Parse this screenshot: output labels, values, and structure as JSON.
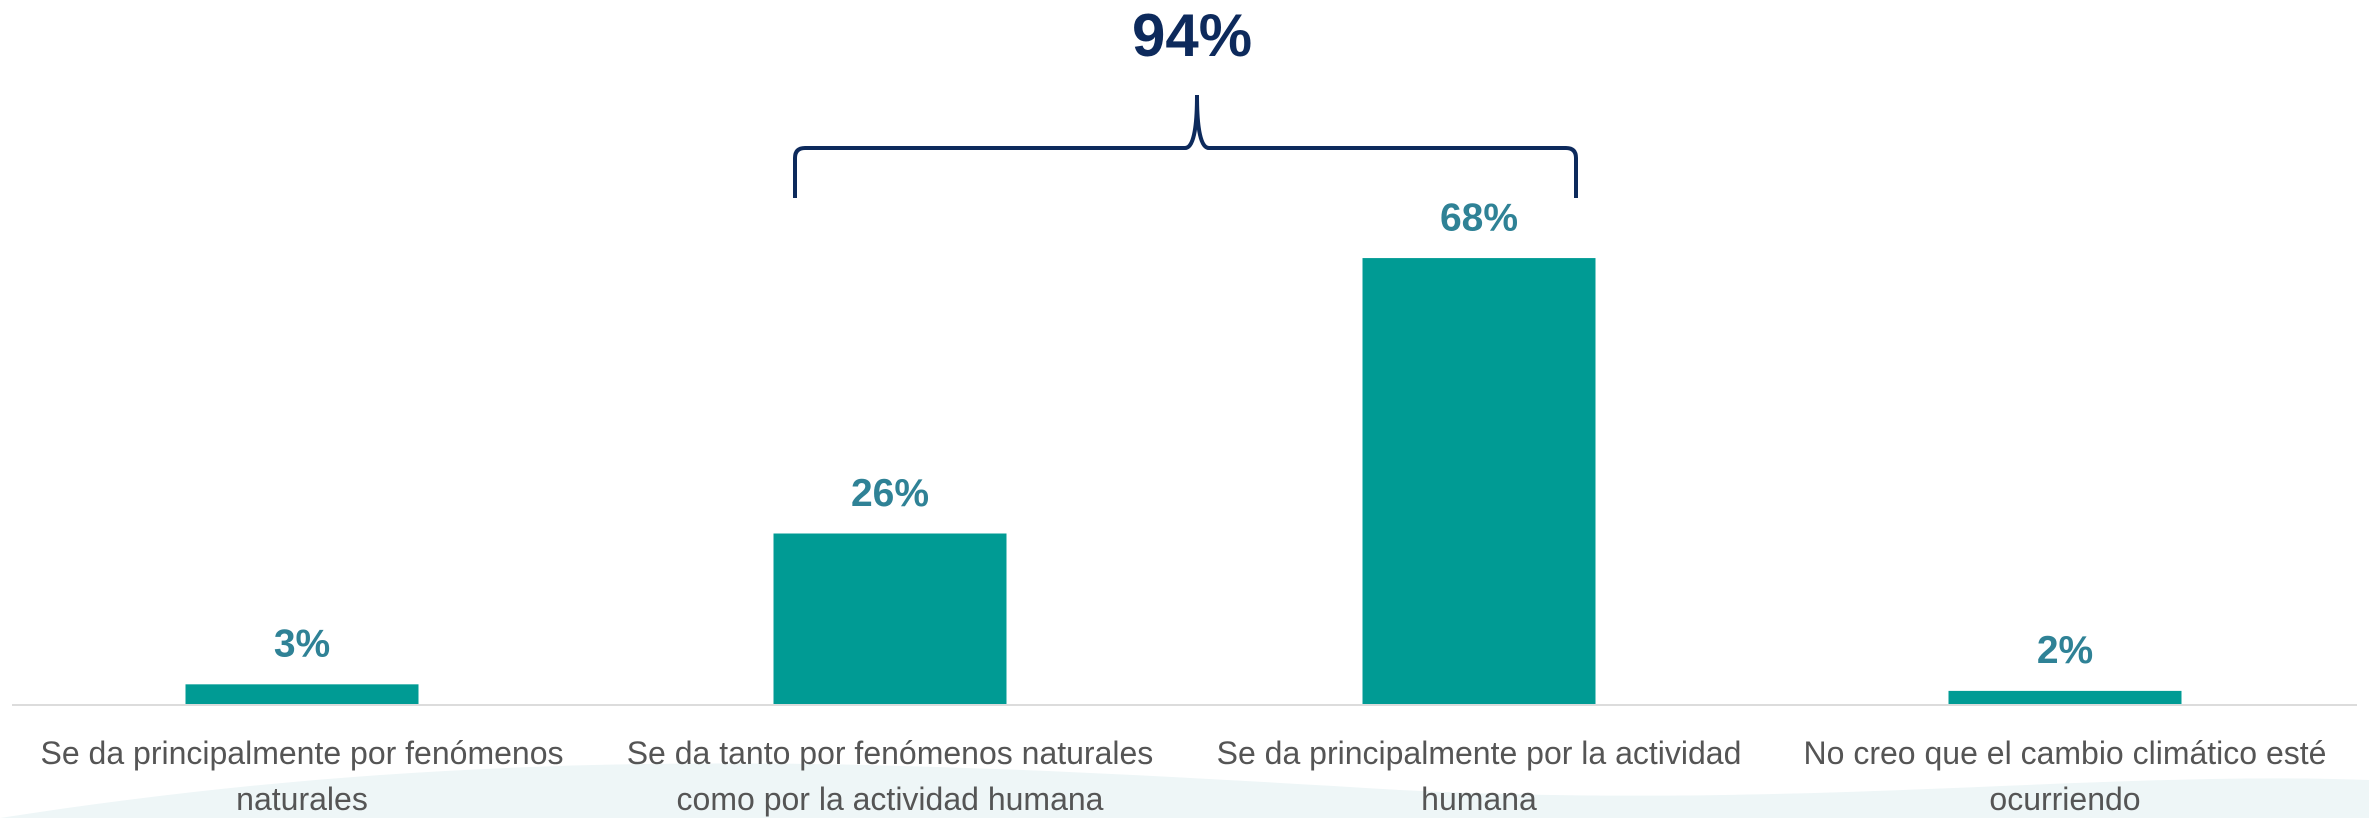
{
  "chart_data": {
    "type": "bar",
    "categories": [
      "Se da principalmente por fenómenos naturales",
      "Se da tanto por fenómenos naturales como por la actividad humana",
      "Se da principalmente por la actividad humana",
      "No creo que el cambio climático esté ocurriendo"
    ],
    "values": [
      3,
      26,
      68,
      2
    ],
    "value_labels": [
      "3%",
      "26%",
      "68%",
      "2%"
    ],
    "color": "#009b94",
    "annotation": "94%"
  }
}
